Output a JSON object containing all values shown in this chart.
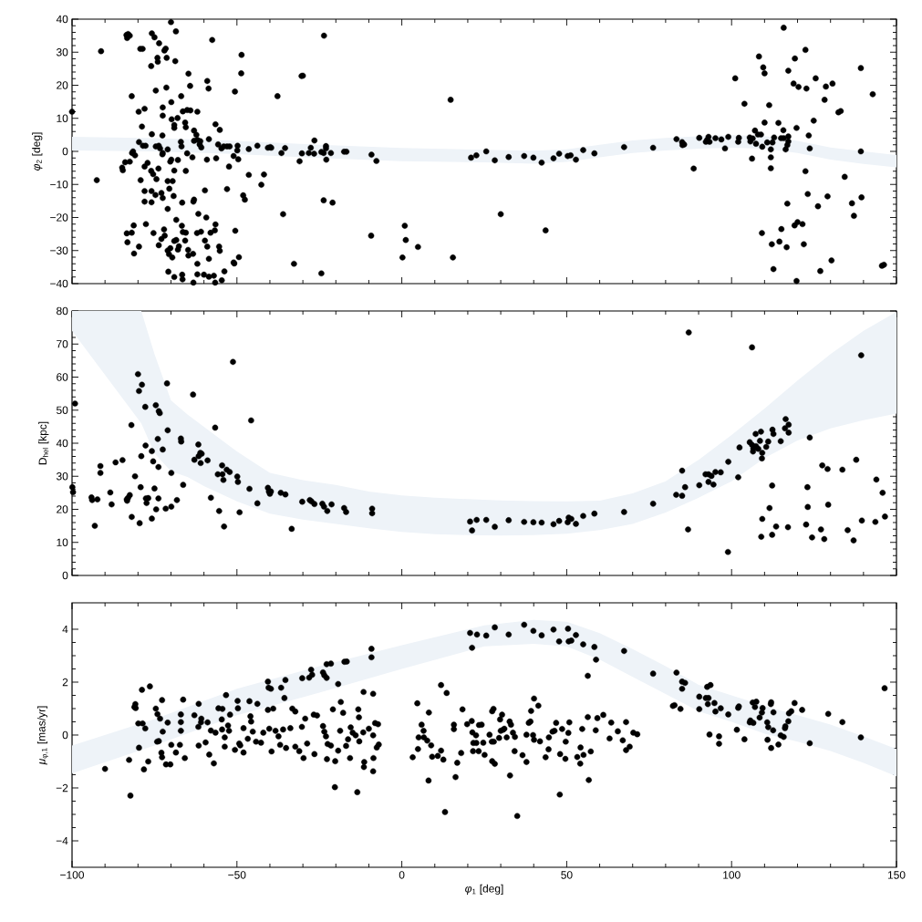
{
  "chart_data": [
    {
      "type": "scatter",
      "ylabel": "*φ*$_{2}$ [deg]",
      "xlim": [
        -100,
        150
      ],
      "ylim": [
        -40,
        40
      ],
      "yticks": [
        {
          "value": -40,
          "label": "−40"
        },
        {
          "value": -30,
          "label": "−30"
        },
        {
          "value": -20,
          "label": "−20"
        },
        {
          "value": -10,
          "label": "−10"
        },
        0,
        10,
        20,
        30,
        40
      ],
      "tick_labels": "y",
      "series": [
        {
          "type": "line",
          "color": "#eef3f8",
          "x": [
            -100,
            -75,
            -50,
            -25,
            0,
            25,
            40,
            50,
            60,
            70,
            80,
            90,
            100,
            110,
            120,
            130,
            140,
            150
          ],
          "values": [
            null,
            null,
            null,
            null,
            null,
            null,
            null,
            null,
            null,
            null,
            null,
            null,
            null,
            null,
            null,
            null,
            null,
            null
          ],
          "upper": [
            4.4,
            4,
            3.2,
            2,
            1,
            0.5,
            0.2,
            0.6,
            2,
            3.3,
            4.1,
            4.6,
            4.9,
            4.6,
            3.2,
            1.2,
            0,
            -1.1
          ],
          "lower": [
            0.3,
            0,
            -0.8,
            -2,
            -3,
            -3.3,
            -3.7,
            -3.2,
            -1.8,
            -0.5,
            0.3,
            0.8,
            1.1,
            0.8,
            -0.5,
            -2.5,
            -3.8,
            -4.8
          ]
        },
        {
          "color": "#000000",
          "marker": "circle",
          "x": [
            -100,
            -91.2,
            -92.5,
            -83.5,
            -83,
            -82.5,
            -83.3,
            -81.9,
            -79.3,
            -78.6,
            -79.8,
            -78,
            -78.8,
            -75.8,
            -75,
            -73.6,
            -72,
            -71.6,
            -74,
            -74.1,
            -76,
            -71.3,
            -68.7,
            -70,
            -68.5,
            -74.6,
            -71.4,
            -69.9,
            -66.9,
            -64.7,
            -64.2,
            -72.5,
            -72.5,
            -69.8,
            -68,
            -69,
            -69,
            -66.4,
            -65.1,
            -64.1,
            -62,
            -65.7,
            -65.5,
            -63,
            -62.3,
            -59,
            -58.6,
            -57.5,
            -48.6,
            -48.7,
            -50.6,
            -37.7,
            -30.4,
            -30,
            -23.6,
            14.8,
            -79.7,
            -78.5,
            -77.7,
            -81.8,
            -80.9,
            -81.5,
            -83.9,
            -82.5,
            -84.8,
            -84.6,
            -75.8,
            -72.6,
            -74.6,
            -73.7,
            -73.3,
            -72.5,
            -72.6,
            -73.8,
            -77.1,
            -78,
            -76,
            -75.4,
            -74.4,
            -79.2,
            -71,
            -69.9,
            -70.2,
            -69,
            -71,
            -69.5,
            -70.5,
            -78,
            -75.9,
            -74.7,
            -72.9,
            -72.5,
            -78,
            -75.9,
            -69.2,
            -66.6,
            -71,
            -67,
            -66.8,
            -65.1,
            -63.5,
            -65.5,
            -67.9,
            -63,
            -62,
            -61.1,
            -61.3,
            -60.8,
            -58.5,
            -59.1,
            -56.3,
            -55.7,
            -54.7,
            -54,
            -53,
            -52.2,
            -56.5,
            -55.2,
            -51,
            -49.6,
            -49.8,
            -49.9,
            -52.4,
            -59.7,
            -53,
            -46.4,
            -48.1,
            -47.6,
            -63,
            -63.2,
            -46.4,
            -43.8,
            -40.6,
            -39.9,
            -39.6,
            -41.8,
            -42.6,
            -36.5,
            -35.4,
            -36,
            -31,
            -30.3,
            -28.2,
            -27.6,
            -26.5,
            -26.6,
            -24.4,
            -23.7,
            -23,
            -23,
            -22.9,
            -21.5,
            -23.7,
            -21,
            -24.4,
            -17.5,
            -16.8,
            -9.2,
            -7.7,
            21,
            22.6,
            0.9,
            1.2,
            0.2,
            -9.3,
            4.9,
            15.5,
            -32.7,
            -81.3,
            -81.9,
            -83.4,
            -83.2,
            -79.7,
            -81.2,
            -77.6,
            -75.3,
            -73.7,
            -72.9,
            -71.9,
            -72.1,
            -71,
            -70.2,
            -70.6,
            -69.6,
            -69,
            -68.4,
            -67.9,
            -67.6,
            -68.4,
            -66.7,
            -66.4,
            -65.5,
            -65.7,
            -64.8,
            -64.7,
            -63.3,
            -62.1,
            -60.9,
            -61.7,
            -59.3,
            -59.7,
            -59,
            -56.5,
            -56.7,
            -58,
            -55.4,
            -55.2,
            -50.5,
            -49.4,
            -51,
            -50.8,
            -58.5,
            -62,
            -70.8,
            -69,
            -66.6,
            -66.5,
            -62,
            -60,
            -58.5,
            -57,
            -56.6,
            -54.6,
            -63.2,
            -53.8,
            25.6,
            28.2,
            32.4,
            37.1,
            39.9,
            42.4,
            46,
            47.7,
            50.3,
            51.2,
            52.8,
            55,
            58.4,
            67.4,
            76.2,
            30,
            43.6,
            83.3,
            85,
            85.6,
            85.1,
            88.5,
            90.2,
            92.2,
            92.6,
            93,
            93.3,
            95.1,
            96.9,
            98,
            99,
            101.1,
            102.2,
            102,
            103.9,
            105.5,
            105.7,
            106.2,
            106.4,
            107.1,
            107.4,
            108,
            108.9,
            108.3,
            109.6,
            110,
            110,
            109.3,
            110.8,
            111.9,
            111.9,
            111.9,
            112.4,
            112.9,
            111.4,
            114.2,
            115.7,
            115.8,
            116.4,
            116.9,
            117.2,
            117.2,
            115,
            115.8,
            117.2,
            119.2,
            118.8,
            120.3,
            122.7,
            122.4,
            119.7,
            123.4,
            123.7,
            122.4,
            124.9,
            125.5,
            128.2,
            128.6,
            130.6,
            132.4,
            133.1,
            139.2,
            142.8,
            139.2,
            134.3,
            123.1,
            126.2,
            129.1,
            136.5,
            139.4,
            137.1,
            116.9,
            120,
            119.1,
            121.5,
            121.9,
            109.2,
            112.2,
            114.5,
            115.1,
            116.7,
            112.7,
            119.7,
            126.9,
            130.3,
            145.6,
            146.2
          ],
          "values": [
            12,
            30.3,
            -8.7,
            35.2,
            35.5,
            35,
            34.3,
            16.7,
            31,
            31,
            12,
            12.9,
            7.5,
            35.7,
            34.5,
            32.7,
            30.5,
            31.1,
            27.1,
            28.3,
            25.8,
            28.3,
            27.3,
            39.1,
            36.3,
            18.4,
            19.3,
            14.9,
            16.7,
            23.5,
            19.8,
            13.3,
            10.8,
            9.7,
            10.1,
            8,
            7.1,
            12.1,
            12.5,
            12.4,
            12,
            8.7,
            7.3,
            6.3,
            5,
            21.3,
            19,
            33.7,
            29.2,
            23.6,
            18.1,
            16.7,
            22.8,
            22.9,
            35,
            15.6,
            2.8,
            1.7,
            1.7,
            -0.5,
            -1.2,
            0,
            -3.3,
            -3.1,
            -4.9,
            -5.7,
            5.2,
            4.8,
            1.5,
            1.7,
            0.9,
            -0.5,
            -0.9,
            -5.2,
            -3.5,
            -4.6,
            -5.9,
            -6.9,
            -8.4,
            -8.7,
            0.6,
            -2.5,
            -3.1,
            -5.8,
            -9,
            -9,
            -11.3,
            -12,
            -12,
            -13.2,
            -12.6,
            -14.1,
            -15.2,
            -15.4,
            -13.5,
            -15.5,
            -17.4,
            2.9,
            1.5,
            -0.6,
            -1.8,
            -5.9,
            -2.6,
            3.2,
            3.5,
            3.1,
            2.1,
            1.2,
            3.7,
            -2.5,
            -2.1,
            2.1,
            0.9,
            1.5,
            1.5,
            1.5,
            8.2,
            6.5,
            -1.4,
            -2.4,
            1.7,
            0.3,
            -4.6,
            -11.8,
            -11.4,
            -7.1,
            -13.3,
            -14.6,
            -14.6,
            -15.2,
            0.7,
            1.7,
            1.1,
            1.3,
            1.1,
            -7,
            -10.1,
            -0.5,
            1,
            -19,
            -3,
            -0.6,
            -0.5,
            1.1,
            3.3,
            -0.7,
            -0.2,
            -0.5,
            1.6,
            0.9,
            -2.5,
            -0.5,
            -14.8,
            -15.5,
            -36.9,
            -0.1,
            -0.1,
            -1,
            -2.9,
            -1.9,
            -1.2,
            -22.5,
            -26.8,
            -32.1,
            -25.5,
            -28.9,
            -32.1,
            -34,
            -22.4,
            -24.6,
            -24.8,
            -27.5,
            -28.8,
            -30.9,
            -22,
            -24.7,
            -28.4,
            -26.5,
            -25.5,
            -23.6,
            -30,
            -29.3,
            -31.1,
            -32.1,
            -27.1,
            -26.8,
            -29.7,
            -28.7,
            -20.7,
            -22.5,
            -24.4,
            -24.6,
            -27,
            -29.8,
            -31.5,
            -31,
            -24.7,
            -24.3,
            -18.9,
            -20,
            -27,
            -28.8,
            -22.1,
            -23.9,
            -24.6,
            -28.8,
            -30.1,
            -24,
            -32,
            -33.6,
            -33.9,
            -32.5,
            -34,
            -36.4,
            -38,
            -37.3,
            -38.7,
            -37.2,
            -37.3,
            -37.9,
            -37.6,
            -39.7,
            -39,
            -39.7,
            -36.3,
            0,
            -2.7,
            -1.7,
            -1.4,
            -1.9,
            -3.4,
            -2.1,
            -0.7,
            -1.4,
            -1.2,
            -2.5,
            0.4,
            -0.6,
            1.3,
            1.1,
            -19,
            -23.9,
            3.7,
            2.8,
            2.1,
            1.9,
            -5.2,
            4.1,
            2.9,
            3.5,
            4.4,
            2.9,
            4,
            3.6,
            0.9,
            4.4,
            22.1,
            4.1,
            2.9,
            14.4,
            4.2,
            3,
            -2.2,
            3.9,
            6.3,
            2.3,
            5.1,
            5.1,
            28.7,
            25.4,
            23.6,
            8.7,
            1.4,
            2.7,
            0.6,
            -1.8,
            -5.1,
            2.7,
            4.2,
            14,
            8.6,
            6.4,
            4,
            0.6,
            1.9,
            3,
            4.5,
            4,
            37.4,
            24.4,
            28.1,
            20.5,
            19.5,
            19,
            30.7,
            7.1,
            4.8,
            0.9,
            -6,
            9.3,
            22.1,
            15.6,
            19.6,
            20.5,
            11.8,
            12.2,
            25.2,
            17.3,
            0,
            -7.7,
            -12.9,
            -16.6,
            -13.6,
            -15.7,
            -13.9,
            -19.5,
            -15.8,
            -21.4,
            -22.4,
            -22,
            -28.1,
            -24.7,
            -28.1,
            -27.3,
            -23.5,
            -29,
            -35.6,
            -39.2,
            -36.2,
            -33,
            -34.6,
            -34.3
          ]
        }
      ]
    },
    {
      "type": "scatter",
      "ylabel": "D$_{hel}$ [kpc]",
      "xlim": [
        -100,
        150
      ],
      "ylim": [
        0,
        80
      ],
      "yticks": [
        0,
        10,
        20,
        30,
        40,
        50,
        60,
        70,
        80
      ],
      "tick_labels": "y",
      "series": [
        {
          "type": "line",
          "color": "#eef3f8",
          "x": [
            -100,
            -79,
            -75,
            -70,
            -65,
            -60,
            -50,
            -40,
            -30,
            -20,
            -10,
            0,
            10,
            20,
            30,
            40,
            50,
            60,
            70,
            80,
            90,
            100,
            110,
            120,
            130,
            140,
            150
          ],
          "values": [
            null,
            null,
            null,
            null,
            null,
            null,
            null,
            null,
            null,
            null,
            null,
            null,
            null,
            null,
            null,
            null,
            null,
            null,
            null,
            null,
            null,
            null,
            null,
            null,
            null,
            null,
            null
          ],
          "upper": [
            80,
            80,
            67,
            53,
            48.7,
            45,
            37.5,
            31,
            28.8,
            27.4,
            25.4,
            24.2,
            23.5,
            23.1,
            22.7,
            22.5,
            22.4,
            22.6,
            24.8,
            28.5,
            35,
            42.5,
            50.5,
            59,
            67,
            74,
            79.7
          ],
          "lower": [
            74,
            46,
            37,
            31.5,
            29.8,
            27,
            22.4,
            18.7,
            16.9,
            15.6,
            14.3,
            13.2,
            12.5,
            12.2,
            12.1,
            12.2,
            12.6,
            13.7,
            15.6,
            19,
            23.5,
            28.5,
            35.5,
            40.8,
            44.5,
            47,
            49
          ]
        },
        {
          "color": "#000000",
          "marker": "circle",
          "x": [
            -99.1,
            -99.9,
            -99.7,
            -94.1,
            -93.9,
            -92.3,
            -93.1,
            -91.4,
            -91.4,
            -88.4,
            -88,
            -86.8,
            -84.7,
            -83.3,
            -83,
            -82.5,
            -83.4,
            -82,
            -81.9,
            -80.9,
            -80,
            -78.8,
            -79.7,
            -79.2,
            -79,
            -79.5,
            -77.8,
            -77.7,
            -77.4,
            -76.9,
            -77.6,
            -75.8,
            -75.4,
            -75,
            -74.6,
            -73.7,
            -73.4,
            -74,
            -73.8,
            -73.8,
            -74.5,
            -75.8,
            -72.5,
            -71.6,
            -69.9,
            -68.2,
            -71.2,
            -71,
            -69.9,
            -66.3,
            -67,
            -66.9,
            -63.3,
            -61.7,
            -61.6,
            -61.1,
            -60.7,
            -61,
            -62.9,
            -58.9,
            -56.6,
            -57.9,
            -55.4,
            -53.9,
            -51.2,
            -54.5,
            -55.8,
            -54.4,
            -54.1,
            -53.1,
            -52.2,
            -49.9,
            -49.7,
            -49.2,
            -45.7,
            -46.2,
            -43.8,
            -40.6,
            -40.3,
            -40,
            -39.7,
            -36.7,
            -35.3,
            -33.4,
            -30.2,
            -27.9,
            -27.4,
            -26.5,
            -24.1,
            -23.6,
            -22.6,
            -21.3,
            -17.5,
            -16.9,
            -9,
            -9,
            20.7,
            21.3,
            22.7,
            25.6,
            28.2,
            32.4,
            37.1,
            39.9,
            42.4,
            46,
            47.7,
            50.3,
            50.6,
            51.4,
            52.8,
            55,
            58.4,
            67.4,
            76.2,
            83.2,
            85,
            85.9,
            85,
            87,
            86.8,
            90.2,
            92.1,
            93,
            93.9,
            93,
            94.5,
            95.1,
            96.7,
            99,
            98.9,
            102,
            102.4,
            106.2,
            105.5,
            106.2,
            106.6,
            106.5,
            107.4,
            108.1,
            107.3,
            108.9,
            108.6,
            109.3,
            109.2,
            110.5,
            111.1,
            112.4,
            112.7,
            114.9,
            116.4,
            117.3,
            116.2,
            117.3,
            123.7,
            112.3,
            111.5,
            109.3,
            109,
            113.5,
            112.3,
            117.1,
            123,
            123.1,
            122.6,
            124.4,
            127.1,
            128.1,
            127.5,
            129.1,
            129.3,
            133.6,
            137.8,
            135.2,
            137,
            139.3,
            139.5,
            143.6,
            143.9,
            145.8,
            146.5
          ],
          "values": [
            52,
            26.7,
            25.2,
            23.6,
            22.8,
            23,
            15,
            33.1,
            31,
            25.1,
            21.5,
            34.2,
            34.9,
            22.6,
            23.5,
            24.3,
            23,
            45.5,
            17.7,
            30,
            60.9,
            57.7,
            55.8,
            26.7,
            36.1,
            15.8,
            51,
            39.3,
            21.9,
            23.4,
            23.3,
            37.6,
            34.5,
            26.3,
            51.5,
            49.7,
            49.1,
            41.3,
            32.8,
            23.3,
            20,
            17.2,
            38.1,
            20.2,
            20.8,
            22.8,
            58.1,
            43.9,
            31,
            27.4,
            41.4,
            40.5,
            54.7,
            39.6,
            36.1,
            37.1,
            36.8,
            34,
            35,
            34.8,
            44.7,
            23.5,
            19.5,
            14.8,
            64.6,
            33.3,
            30.6,
            30.6,
            28.9,
            32,
            31.3,
            29.9,
            28.3,
            19.1,
            46.9,
            26.2,
            21.8,
            26.5,
            25.4,
            24.7,
            25.4,
            25,
            24.5,
            14.1,
            22.3,
            22.8,
            22.4,
            21.6,
            21.7,
            20.8,
            19.5,
            21.5,
            20.4,
            19.2,
            20.2,
            18.8,
            16.3,
            13.6,
            16.8,
            16.8,
            14.7,
            16.7,
            16.2,
            16.1,
            16,
            15.5,
            16.5,
            16.1,
            17.5,
            17.1,
            15.6,
            18,
            18.7,
            19.2,
            21.7,
            24.4,
            24.1,
            26.7,
            31.7,
            73.5,
            13.9,
            27.3,
            30.6,
            30.6,
            30.1,
            28.3,
            27.5,
            31.3,
            31.2,
            34.4,
            7.1,
            29.7,
            38.7,
            69,
            40.3,
            39.5,
            38.4,
            37.5,
            39.1,
            38.3,
            42.8,
            43.5,
            40.7,
            37.1,
            35.4,
            38.9,
            40.5,
            44.1,
            42.8,
            40.6,
            47.3,
            45.6,
            44.5,
            43.2,
            41.7,
            27.2,
            20.4,
            17.1,
            11.7,
            14.8,
            12.3,
            14.6,
            26.7,
            20.7,
            15.4,
            11.5,
            13.9,
            11,
            33.3,
            32.2,
            21.4,
            32,
            35,
            13.7,
            10.6,
            66.6,
            16.6,
            16.2,
            29,
            25,
            17.8
          ]
        }
      ]
    },
    {
      "type": "scatter",
      "xlabel": "*φ*$_{1}$ [deg]",
      "ylabel": "*μ*$_{φ,1}$ [mas/yr]",
      "xlim": [
        -100,
        150
      ],
      "xticks": [
        {
          "value": -100,
          "label": "−100"
        },
        {
          "value": -50,
          "label": "−50"
        },
        0,
        50,
        100,
        150
      ],
      "ylim": [
        -5,
        5
      ],
      "yticks": [
        {
          "value": -4,
          "label": "−4"
        },
        {
          "value": -2,
          "label": "−2"
        },
        0,
        2,
        4
      ],
      "series": [
        {
          "type": "line",
          "color": "#eef3f8",
          "x": [
            -100,
            -75,
            -50,
            -25,
            0,
            25,
            40,
            50,
            60,
            70,
            80,
            90,
            100,
            110,
            120,
            130,
            140,
            150
          ],
          "values": [
            null,
            null,
            null,
            null,
            null,
            null,
            null,
            null,
            null,
            null,
            null,
            null,
            null,
            null,
            null,
            null,
            null,
            null
          ],
          "upper": [
            -0.4,
            0.6,
            1.75,
            2.6,
            3.4,
            4.15,
            4.35,
            4.28,
            3.85,
            3.25,
            2.6,
            1.9,
            1.5,
            1.1,
            0.75,
            0.4,
            -0.05,
            -0.53
          ],
          "lower": [
            -1.45,
            -0.4,
            0.75,
            1.6,
            2.5,
            3.35,
            3.45,
            3.35,
            2.85,
            2.2,
            1.55,
            0.9,
            0.5,
            0.05,
            -0.25,
            -0.6,
            -1.05,
            -1.56
          ]
        },
        {
          "color": "#000000",
          "marker": "circle",
          "x": [
            -90,
            -82.3,
            -82.7,
            -81.1,
            -80.8,
            -80.7,
            -78.8,
            -76.4,
            -79.9,
            -78.6,
            -77.8,
            -79.7,
            -78.2,
            -76.9,
            -74.6,
            -74.1,
            -73.3,
            -72.7,
            -72.5,
            -74.2,
            -73.7,
            -72.9,
            -72.7,
            -71.5,
            -70.2,
            -71,
            -69.9,
            -68.5,
            -67.3,
            -67,
            -67,
            -67,
            -66.3,
            -65.8,
            -62.9,
            -61.6,
            -61.7,
            -60.8,
            -60.9,
            -59.5,
            -61.6,
            -58.9,
            -58.4,
            -57,
            -57.9,
            -56.5,
            -55.6,
            -54.4,
            -54.6,
            -54.5,
            -53.7,
            -53.7,
            -53.3,
            -52.1,
            -52.4,
            -52.7,
            -50.6,
            -49.8,
            -49.7,
            -49.3,
            -49,
            -48,
            -48,
            -46.7,
            -46.2,
            -45.9,
            -45.7,
            -45.2,
            -43.8,
            -44.2,
            -42.7,
            -42,
            -40.6,
            -40.4,
            -39.7,
            -40.6,
            -39,
            -40.2,
            -39.5,
            -38.3,
            -37.4,
            -36.6,
            -35.3,
            -35.6,
            -36.9,
            -36,
            -35.1,
            -33.8,
            -33.2,
            -32.3,
            -32.3,
            -31.1,
            -30.3,
            -29.8,
            -29.3,
            -30.2,
            -28.1,
            -27.5,
            -27.2,
            -23.9,
            -23.5,
            -22.8,
            -21.5,
            -22.8,
            -28.7,
            -26.7,
            -25.7,
            -26.5,
            -23.9,
            -23.5,
            -23,
            -22.5,
            -22.7,
            -21.5,
            -20.2,
            -20.3,
            -20.9,
            -19.3,
            -18.5,
            -18.7,
            -17.8,
            -19.3,
            -17.4,
            -16.7,
            -15.7,
            -16.9,
            -16.3,
            -15.5,
            -14.9,
            -14,
            -13.2,
            -13,
            -12.9,
            -13.5,
            -11.7,
            -11.4,
            -11.5,
            -11.6,
            -8.7,
            -10,
            -9.2,
            -9.2,
            -8.7,
            -8.7,
            -8.6,
            -8.1,
            -7.2,
            -7.6,
            -7,
            3.3,
            4.7,
            5.1,
            6,
            6.6,
            6.7,
            7.7,
            8.2,
            8.1,
            8.9,
            9.2,
            10.9,
            4.9,
            11.9,
            11.9,
            13.6,
            12.6,
            13.1,
            16.3,
            16.8,
            15.8,
            15.8,
            18,
            18.4,
            19.8,
            21.2,
            21.4,
            22.5,
            22.6,
            21.7,
            21.6,
            23.3,
            23.4,
            20.7,
            22.8,
            21.3,
            25.6,
            28.2,
            32.4,
            37.1,
            39.9,
            42.4,
            46,
            47.7,
            50.4,
            50.6,
            51.4,
            52.8,
            55,
            58.4,
            58.9,
            56.4,
            67.4,
            76.2,
            83.3,
            85,
            85.9,
            85,
            82.2,
            82.7,
            84.5,
            90.2,
            92.2,
            93,
            92.6,
            93.6,
            92.8,
            94.8,
            95.1,
            96.7,
            99,
            90.2,
            93.3,
            96.2,
            96.2,
            102.2,
            102,
            101.6,
            103.9,
            105.5,
            105.7,
            106.6,
            106.4,
            107.5,
            107.1,
            108.5,
            109.4,
            109.2,
            110.8,
            111.1,
            111.9,
            112,
            112.6,
            112.7,
            112,
            110.9,
            114.2,
            114.9,
            115.8,
            116.2,
            116.3,
            117.2,
            117.4,
            118.1,
            119.1,
            121.4,
            123.7,
            129.3,
            133.6,
            139.2,
            146.4,
            24.2,
            24.7,
            25.1,
            26.6,
            27.3,
            27.9,
            27.4,
            28.2,
            27.4,
            27.8,
            29.5,
            29.8,
            30.4,
            30,
            30.7,
            31.1,
            31.8,
            32.7,
            33.1,
            32.8,
            33.7,
            34.3,
            34.2,
            35,
            36.6,
            37.8,
            37.8,
            38.5,
            39,
            39.2,
            39.8,
            40.1,
            40.1,
            41.4,
            41.9,
            43.6,
            44.5,
            44.6,
            45.7,
            46.3,
            46.8,
            48,
            47.9,
            48.6,
            49.7,
            49.6,
            50.5,
            50.8,
            53.2,
            54.1,
            54.2,
            54.7,
            55.1,
            56.4,
            56.7,
            57.3,
            58.8,
            59.3,
            61.1,
            63,
            63.5,
            65.5,
            67,
            68,
            68,
            69.1,
            70.2,
            71.4
          ],
          "values": [
            -1.28,
            -2.29,
            -0.94,
            1.06,
            1.17,
            1.02,
            1.71,
            1.84,
            0.44,
            0.44,
            0.25,
            -0.48,
            -1.3,
            -1.0,
            1.0,
            0.79,
            0.62,
            1.32,
            0.13,
            -0.25,
            -0.23,
            -0.67,
            -0.84,
            -1.11,
            -1.11,
            0.47,
            -0.37,
            -0.66,
            -0.37,
            0.78,
            0.49,
            0.16,
            1.34,
            -0.87,
            0.75,
            1.18,
            0.31,
            0.62,
            0.48,
            -0.28,
            -0.4,
            0.48,
            -0.74,
            -1.07,
            0.17,
            0.09,
            1.01,
            0.99,
            0.59,
            0.21,
            -0.09,
            -0.44,
            1.51,
            0.77,
            0.16,
            0.36,
            -0.56,
            1.29,
            1.01,
            -0.32,
            -0.39,
            -0.66,
            0.26,
            -0.14,
            1.28,
            0.71,
            0.51,
            0.13,
            1.18,
            -0.25,
            -0.29,
            0.09,
            2.02,
            1.79,
            1.75,
            0.95,
            1.0,
            0.24,
            -0.62,
            0.16,
            -0.05,
            1.79,
            2.08,
            1.4,
            -0.37,
            0.21,
            -0.49,
            0.26,
            1.0,
            0.89,
            -0.44,
            -0.61,
            0.31,
            -0.87,
            0.62,
            2.15,
            2.17,
            2.47,
            2.28,
            2.37,
            2.26,
            2.68,
            2.7,
            2.16,
            -0.32,
            0.77,
            0.74,
            -0.72,
            0.34,
            0.13,
            -0.05,
            -0.34,
            -0.91,
            -0.4,
            -0.99,
            -1.97,
            0.97,
            1.93,
            1.25,
            0.16,
            0.84,
            -0.59,
            2.77,
            2.78,
            -0.87,
            -0.41,
            -0.16,
            0.29,
            0.09,
            -0.01,
            0.97,
            0.67,
            -0.24,
            -2.16,
            0.1,
            -1.02,
            -1.21,
            1.63,
            1.56,
            0.24,
            3.26,
            2.94,
            -0.01,
            -1.37,
            -0.87,
            0.45,
            0.41,
            -0.47,
            -0.36,
            -0.84,
            1.2,
            -0.09,
            0.39,
            0.16,
            -0.09,
            -0.21,
            0.85,
            -1.72,
            -0.39,
            -0.82,
            -0.79,
            -0.53,
            -0.59,
            1.89,
            1.59,
            -0.93,
            -2.91,
            -1.59,
            -1.05,
            0.39,
            0.22,
            -0.68,
            0.97,
            0.41,
            0.53,
            0.1,
            -0.01,
            -0.3,
            -0.3,
            -0.61,
            -0.61,
            0.38,
            3.86,
            3.8,
            3.3,
            3.76,
            4.07,
            3.8,
            4.17,
            3.94,
            3.77,
            3.99,
            3.54,
            4.02,
            3.54,
            3.57,
            3.78,
            3.43,
            3.33,
            2.85,
            2.24,
            3.18,
            2.32,
            2.36,
            2.02,
            1.97,
            1.75,
            1.1,
            1.13,
            0.99,
            1.45,
            1.4,
            1.4,
            1.82,
            1.89,
            1.17,
            1.21,
            0.89,
            1.01,
            0.78,
            0.98,
            0.02,
            -0.05,
            -0.33,
            1.08,
            1.03,
            0.2,
            -0.16,
            0.48,
            0.55,
            0.46,
            1.23,
            1.26,
            1.06,
            0.66,
            1.02,
            0.85,
            0.48,
            0.3,
            1.17,
            1.24,
            0.18,
            0.86,
            -0.49,
            -0.18,
            -0.36,
            -0.01,
            -0.07,
            0.26,
            0.33,
            0.52,
            0.82,
            0.9,
            1.21,
            0.95,
            -0.31,
            0.8,
            0.49,
            -0.09,
            1.77,
            0.39,
            -0.29,
            -0.75,
            0.01,
            -0.25,
            -0.25,
            -0.99,
            -1.09,
            0.9,
            0.99,
            -0.11,
            0.59,
            0.77,
            0.16,
            0.2,
            0.24,
            -0.09,
            0.51,
            0.39,
            -1.53,
            0.09,
            -0.07,
            -0.61,
            -3.06,
            -0.76,
            -1.02,
            0.01,
            0.46,
            0.51,
            0.91,
            0,
            -0.18,
            1.38,
            1.11,
            -0.24,
            -0.84,
            -0.54,
            -0.09,
            0.13,
            0.16,
            0.46,
            -0.72,
            -2.25,
            0.23,
            -0.25,
            -0.9,
            0.08,
            0.48,
            -0.83,
            -1.08,
            -0.47,
            0.23,
            -0.75,
            0.68,
            -1.7,
            -0.62,
            0.18,
            0.64,
            0.76,
            -0.13,
            0.47,
            0.14,
            -0.2,
            0.49,
            -0.57,
            -0.44,
            0.09,
            0.03
          ]
        }
      ]
    }
  ]
}
